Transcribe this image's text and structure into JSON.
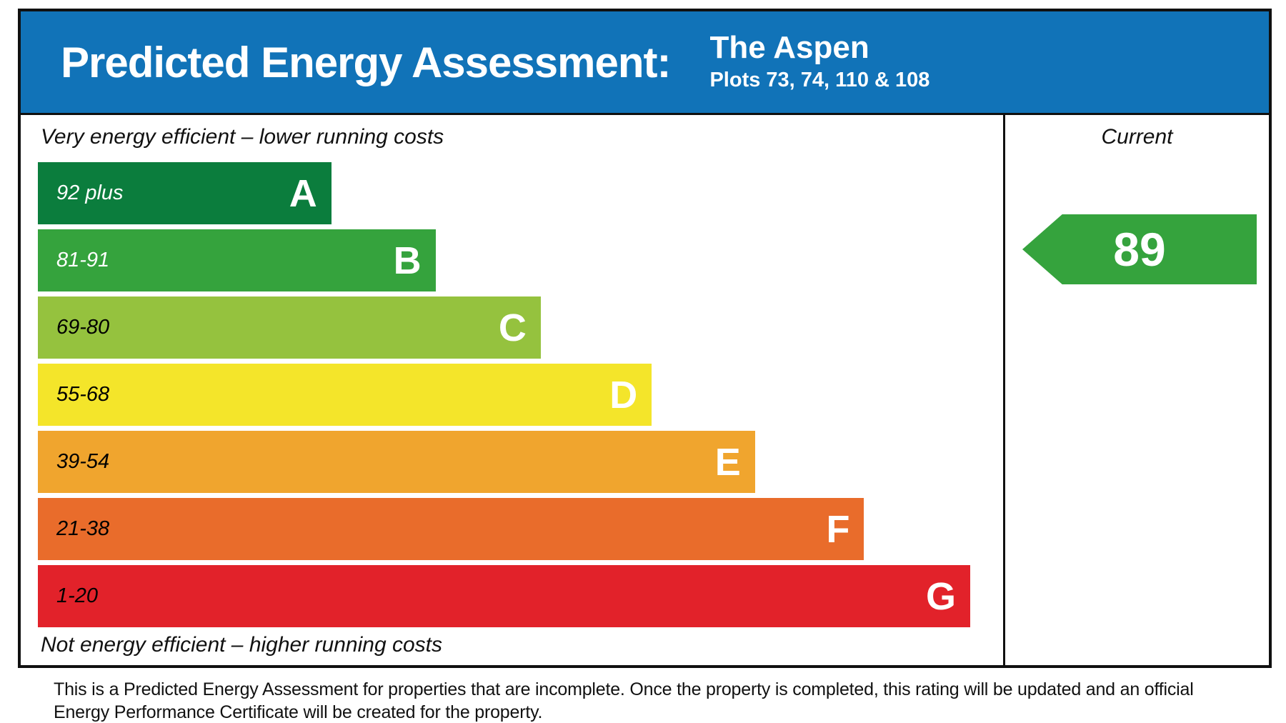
{
  "header": {
    "title": "Predicted Energy Assessment:",
    "property_name": "The Aspen",
    "plots": "Plots 73, 74, 110 & 108",
    "background_color": "#1173b8"
  },
  "chart": {
    "top_caption": "Very energy efficient – lower running costs",
    "bottom_caption": "Not energy efficient – higher running costs",
    "current_column_label": "Current",
    "bands": [
      {
        "letter": "A",
        "range": "92 plus",
        "color": "#0b7d3d",
        "label_color": "#ffffff",
        "width_pct": 30.4
      },
      {
        "letter": "B",
        "range": "81-91",
        "color": "#35a33d",
        "label_color": "#ffffff",
        "width_pct": 41.2
      },
      {
        "letter": "C",
        "range": "69-80",
        "color": "#95c23e",
        "label_color": "#000000",
        "width_pct": 52.1
      },
      {
        "letter": "D",
        "range": "55-68",
        "color": "#f4e52a",
        "label_color": "#000000",
        "width_pct": 63.6
      },
      {
        "letter": "E",
        "range": "39-54",
        "color": "#f0a52e",
        "label_color": "#000000",
        "width_pct": 74.3
      },
      {
        "letter": "F",
        "range": "21-38",
        "color": "#e96c2b",
        "label_color": "#000000",
        "width_pct": 85.6
      },
      {
        "letter": "G",
        "range": "1-20",
        "color": "#e2222a",
        "label_color": "#000000",
        "width_pct": 96.6
      }
    ],
    "current": {
      "value": "89",
      "band": "B",
      "color": "#35a33d"
    }
  },
  "footer": {
    "text": "This is a Predicted Energy Assessment for properties that are incomplete. Once the property is completed, this rating will be updated and an official Energy Performance Certificate will be created for the property."
  },
  "chart_data": {
    "type": "bar",
    "title": "Predicted Energy Assessment: The Aspen, Plots 73, 74, 110 & 108",
    "categories": [
      "A",
      "B",
      "C",
      "D",
      "E",
      "F",
      "G"
    ],
    "band_score_ranges": [
      "92 plus",
      "81-91",
      "69-80",
      "55-68",
      "39-54",
      "21-38",
      "1-20"
    ],
    "band_colors": [
      "#0b7d3d",
      "#35a33d",
      "#95c23e",
      "#f4e52a",
      "#f0a52e",
      "#e96c2b",
      "#e2222a"
    ],
    "bar_relative_widths_pct": [
      30.4,
      41.2,
      52.1,
      63.6,
      74.3,
      85.6,
      96.6
    ],
    "top_axis_caption": "Very energy efficient – lower running costs",
    "bottom_axis_caption": "Not energy efficient – higher running costs",
    "columns": [
      "Current"
    ],
    "current_rating": 89,
    "current_rating_band": "B",
    "orientation": "horizontal",
    "legend_position": "none",
    "grid": false
  }
}
